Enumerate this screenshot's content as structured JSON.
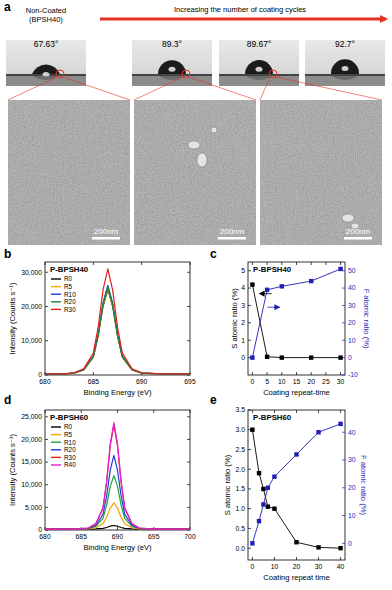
{
  "panel_a": {
    "label": "a",
    "non_coated": [
      "Non-Coated",
      "(BPSH40)"
    ],
    "arrow_text": "Increasing the number of coating cycles",
    "contact_angles": [
      "67.63°",
      "89.3°",
      "89.67°",
      "92.7°"
    ],
    "scale_bars": [
      "200nm",
      "200nm",
      "200nm"
    ]
  },
  "chart_data": [
    {
      "type": "line",
      "panel_label": "b",
      "title": "P-BPSH40",
      "x_label": "Binding Energy (eV)",
      "y_label": "Intensity (Counts s⁻¹)",
      "x": [
        680,
        682,
        683,
        684,
        685,
        685.5,
        686,
        686.5,
        687,
        687.5,
        688,
        689,
        690,
        692,
        695
      ],
      "xlim": [
        680,
        695
      ],
      "xticks": [
        680,
        685,
        690,
        695
      ],
      "ylim": [
        0,
        33000
      ],
      "yticks": [
        0,
        {
          "value": 10000,
          "label": "10,000"
        },
        {
          "value": 20000,
          "label": "20,000"
        },
        {
          "value": 30000,
          "label": "30,000"
        }
      ],
      "legend": "upper left",
      "series": [
        {
          "name": "R0",
          "color": "#000000",
          "values": [
            300,
            300,
            550,
            1500,
            5200,
            11400,
            20000,
            25000,
            20000,
            11400,
            5200,
            1500,
            550,
            300,
            300
          ]
        },
        {
          "name": "R5",
          "color": "#f5a300",
          "values": [
            300,
            300,
            560,
            1550,
            5300,
            11500,
            20300,
            25400,
            20300,
            11500,
            5300,
            1550,
            560,
            300,
            300
          ]
        },
        {
          "name": "R10",
          "color": "#1f3fd6",
          "values": [
            300,
            300,
            580,
            1600,
            5500,
            11900,
            21000,
            26200,
            21000,
            11900,
            5500,
            1600,
            580,
            300,
            300
          ]
        },
        {
          "name": "R20",
          "color": "#1a8a3a",
          "values": [
            300,
            300,
            570,
            1580,
            5400,
            11700,
            20700,
            25800,
            20700,
            11700,
            5400,
            1580,
            570,
            300,
            300
          ]
        },
        {
          "name": "R30",
          "color": "#e0201b",
          "values": [
            300,
            300,
            650,
            1800,
            6400,
            14000,
            24800,
            31000,
            24800,
            14000,
            6400,
            1800,
            650,
            300,
            300
          ]
        }
      ]
    },
    {
      "type": "line",
      "panel_label": "c",
      "title": "P-BPSH40",
      "x_label": "Coating repeat-time",
      "y_label": "S atomic ratio (%)",
      "y2_label": "F atomic ratio (%)",
      "marker": "square",
      "x": [
        0,
        5,
        10,
        20,
        30
      ],
      "xlim": [
        -1.5,
        31.5
      ],
      "xticks": [
        0,
        5,
        10,
        15,
        20,
        25,
        30
      ],
      "ylim": [
        -1,
        5.5
      ],
      "yticks": [
        0,
        1,
        2,
        3,
        4,
        5
      ],
      "y2lim": [
        -10,
        55
      ],
      "y2ticks": [
        -10,
        0,
        10,
        20,
        30,
        40,
        50
      ],
      "series": [
        {
          "color": "#000000",
          "values": [
            4.2,
            0.05,
            0,
            0,
            0
          ]
        },
        {
          "color": "#1f1fb4",
          "axis": "y2",
          "values": [
            0,
            39,
            41,
            44,
            51
          ]
        }
      ]
    },
    {
      "type": "line",
      "panel_label": "d",
      "title": "P-BPSH60",
      "x_label": "Binding Energy (eV)",
      "y_label": "Intensity (Counts s⁻¹)",
      "x": [
        680,
        684,
        686,
        687,
        688,
        688.5,
        689,
        689.5,
        690,
        690.5,
        691,
        692,
        693,
        695,
        700
      ],
      "xlim": [
        680,
        700
      ],
      "xticks": [
        680,
        685,
        690,
        695,
        700
      ],
      "ylim": [
        0,
        26500
      ],
      "yticks": [
        0,
        {
          "value": 5000,
          "label": "5,000"
        },
        {
          "value": 10000,
          "label": "10,000"
        },
        {
          "value": 15000,
          "label": "15,000"
        },
        {
          "value": 20000,
          "label": "20,000"
        },
        {
          "value": 25000,
          "label": "25,000"
        }
      ],
      "legend": "upper left",
      "series": [
        {
          "name": "R0",
          "color": "#000000",
          "values": [
            200,
            200,
            210,
            250,
            360,
            560,
            840,
            1000,
            840,
            560,
            360,
            250,
            210,
            200,
            200
          ]
        },
        {
          "name": "R5",
          "color": "#f5a300",
          "values": [
            200,
            200,
            260,
            500,
            1360,
            2800,
            4840,
            6000,
            4840,
            2800,
            1360,
            500,
            260,
            200,
            200
          ]
        },
        {
          "name": "R10",
          "color": "#1aa53a",
          "values": [
            200,
            200,
            320,
            800,
            2560,
            5500,
            9640,
            12000,
            9640,
            5500,
            2560,
            800,
            320,
            200,
            200
          ]
        },
        {
          "name": "R20",
          "color": "#1f3fd6",
          "values": [
            200,
            200,
            360,
            1000,
            3460,
            7500,
            13240,
            16500,
            13240,
            7500,
            3460,
            1000,
            360,
            200,
            200
          ]
        },
        {
          "name": "R30",
          "color": "#e0201b",
          "values": [
            200,
            200,
            430,
            1350,
            4800,
            10500,
            18600,
            23200,
            18600,
            10500,
            4800,
            1350,
            430,
            200,
            200
          ]
        },
        {
          "name": "R40",
          "color": "#e020d8",
          "values": [
            200,
            200,
            440,
            1380,
            4900,
            10750,
            19000,
            23700,
            19000,
            10750,
            4900,
            1380,
            440,
            200,
            200
          ]
        }
      ]
    },
    {
      "type": "line",
      "panel_label": "e",
      "title": "P-BPSH60",
      "x_label": "Coating repeat time",
      "y_label": "S atomic ratio (%)",
      "y2_label": "F atomic ratio (%)",
      "marker": "square",
      "x": [
        0,
        3,
        5,
        7,
        10,
        20,
        30,
        40
      ],
      "xlim": [
        -2,
        42
      ],
      "xticks": [
        0,
        10,
        20,
        30,
        40
      ],
      "ylim": [
        -0.3,
        3.5
      ],
      "yticks": [
        {
          "value": 0,
          "label": "0.0"
        },
        {
          "value": 0.5,
          "label": "0.5"
        },
        {
          "value": 1,
          "label": "1.0"
        },
        {
          "value": 1.5,
          "label": "1.5"
        },
        {
          "value": 2,
          "label": "2.0"
        },
        {
          "value": 2.5,
          "label": "2.5"
        },
        {
          "value": 3,
          "label": "3.0"
        },
        {
          "value": 3.5,
          "label": "3.5"
        }
      ],
      "y2lim": [
        -6,
        48
      ],
      "y2ticks": [
        0,
        10,
        20,
        30,
        40
      ],
      "series": [
        {
          "color": "#000000",
          "values": [
            3.0,
            1.9,
            1.5,
            1.05,
            1.0,
            0.15,
            0.02,
            0.0
          ]
        },
        {
          "color": "#1f1fb4",
          "axis": "y2",
          "values": [
            0,
            8,
            14,
            20,
            24,
            32,
            40,
            43
          ]
        }
      ]
    }
  ]
}
